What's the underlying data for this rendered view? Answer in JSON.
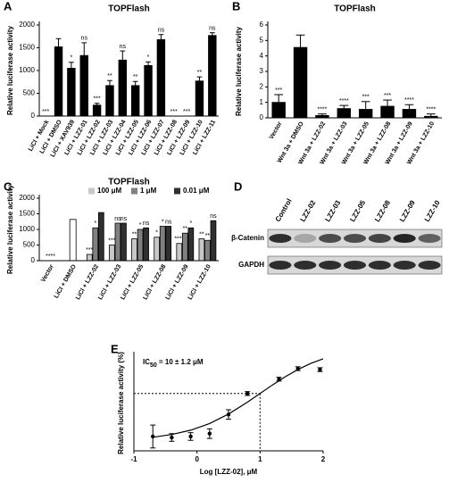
{
  "chart_data": [
    {
      "type": "bar",
      "label": "A",
      "title": "TOPFlash",
      "ylabel": "Relative luciferase activity",
      "categories": [
        "LiCl + Mock",
        "LiCl + DMSO",
        "LiCl + XAV939",
        "LiCl + LZZ-01",
        "LiCl + LZZ-02",
        "LiCl + LZZ-03",
        "LiCl + LZZ-04",
        "LiCl + LZZ-05",
        "LiCl + LZZ-06",
        "LiCl + LZZ-07",
        "LiCl + LZZ-08",
        "LiCl + LZZ-09",
        "LiCl + LZZ-10",
        "LiCl + LZZ-11"
      ],
      "values": [
        0,
        1520,
        1050,
        1330,
        240,
        670,
        1230,
        670,
        1110,
        1680,
        0,
        0,
        770,
        1770
      ],
      "errors": [
        0,
        180,
        130,
        280,
        40,
        110,
        200,
        90,
        80,
        110,
        0,
        0,
        90,
        60
      ],
      "annotations": [
        "***",
        null,
        "*",
        "ns",
        "***",
        "**",
        "ns",
        "**",
        "*",
        "ns",
        "***",
        "***",
        "**",
        "ns"
      ],
      "color": "#000000",
      "ylim": [
        0,
        2000
      ],
      "yticks": [
        0,
        500,
        1000,
        1500,
        2000
      ]
    },
    {
      "type": "bar",
      "label": "B",
      "title": "TOPFlash",
      "ylabel": "Relative luciferase activity",
      "categories": [
        "Vector",
        "Wnt 3a + DMSO",
        "Wnt 3a + LZZ-02",
        "Wnt 3a + LZZ-03",
        "Wnt 3a + LZZ-05",
        "Wnt 3a + LZZ-08",
        "Wnt 3a + LZZ-09",
        "Wnt 3a + LZZ-10"
      ],
      "values": [
        1.0,
        4.55,
        0.15,
        0.6,
        0.55,
        0.75,
        0.55,
        0.1
      ],
      "errors": [
        0.5,
        0.8,
        0.1,
        0.2,
        0.5,
        0.4,
        0.3,
        0.15
      ],
      "annotations": [
        "***",
        null,
        "****",
        "****",
        "***",
        "***",
        "****",
        "****"
      ],
      "color": "#000000",
      "ylim": [
        0,
        6
      ],
      "yticks": [
        0,
        1,
        2,
        3,
        4,
        5,
        6
      ]
    },
    {
      "type": "grouped_bar",
      "label": "C",
      "title": "TOPFlash",
      "ylabel": "Relative luciferase activity",
      "categories": [
        "Vector",
        "LiCl + DMSO",
        "LiCl + LZZ-02",
        "LiCl + LZZ-03",
        "LiCl + LZZ-05",
        "LiCl + LZZ-08",
        "LiCl + LZZ-09",
        "LiCl + LZZ-10"
      ],
      "values": [
        0,
        1320,
        null,
        null,
        null,
        null,
        null,
        null
      ],
      "annotations": [
        "****",
        null,
        null,
        null,
        null,
        null,
        null,
        null
      ],
      "color": "#ffffff",
      "series": [
        {
          "name": "100 μM",
          "color": "#c8c8c8",
          "values": [
            null,
            null,
            200,
            500,
            700,
            750,
            550,
            700
          ],
          "annotations": [
            null,
            null,
            "***",
            "***",
            "**",
            "*",
            "****",
            "**"
          ]
        },
        {
          "name": "1 μM",
          "color": "#808080",
          "values": [
            null,
            null,
            1050,
            1200,
            1000,
            1100,
            880,
            650
          ],
          "annotations": [
            null,
            null,
            "*",
            "ns",
            "*",
            "*",
            "**",
            "**"
          ]
        },
        {
          "name": "0.01 μM",
          "color": "#303030",
          "values": [
            null,
            null,
            1540,
            1200,
            1050,
            1100,
            1050,
            1280
          ],
          "annotations": [
            null,
            null,
            null,
            "ns",
            "ns",
            "ns",
            "*",
            "ns"
          ]
        }
      ],
      "ylim": [
        0,
        2000
      ],
      "yticks": [
        0,
        500,
        1000,
        1500,
        2000
      ],
      "legend": "top"
    },
    {
      "type": "scatter",
      "label": "E",
      "ylabel": "Relative luciferase activity (%)",
      "xlabel": "Log [LZZ-02], μM",
      "annotation": {
        "prefix": "IC",
        "sub": "50",
        "rest": " = 10 ± 1.2 μM"
      },
      "x": [
        -0.7,
        -0.4,
        -0.1,
        0.2,
        0.5,
        0.8,
        1.3,
        1.6,
        1.95
      ],
      "values": [
        5,
        4,
        5,
        8,
        28,
        50,
        65,
        76,
        75
      ],
      "errors": [
        12,
        4,
        4,
        5,
        5,
        2,
        2,
        2,
        2
      ],
      "fit": {
        "x": [
          -0.7,
          -0.4,
          -0.1,
          0.2,
          0.5,
          0.8,
          1.0,
          1.2,
          1.4,
          1.6,
          1.8,
          2.0
        ],
        "values": [
          4.2,
          7.1,
          11.6,
          18.6,
          28.5,
          40.9,
          50,
          59.1,
          67.6,
          75.1,
          81.4,
          86.3
        ]
      },
      "reference": {
        "x": 1,
        "y": 50
      },
      "color": "#000000",
      "xlim": [
        -1,
        2
      ],
      "xticks": [
        -1,
        0,
        1,
        2
      ],
      "ylim": [
        -10,
        90
      ]
    }
  ],
  "blot": {
    "label": "D",
    "lanes": [
      "Control",
      "LZZ-02",
      "LZZ-03",
      "LZZ-05",
      "LZZ-08",
      "LZZ-09",
      "LZZ-10"
    ],
    "rows": [
      "β-Catenin",
      "GAPDH"
    ]
  }
}
